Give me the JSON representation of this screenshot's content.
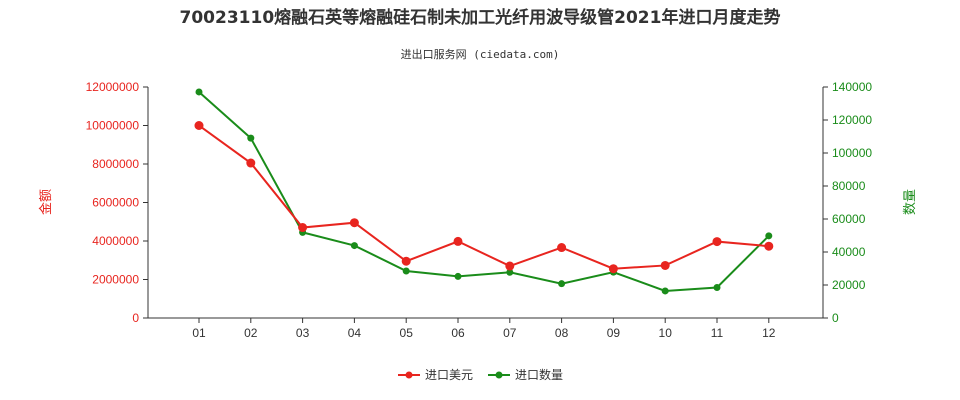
{
  "chart_data": {
    "type": "line",
    "title": "70023110熔融石英等熔融硅石制未加工光纤用波导级管2021年进口月度走势",
    "subtitle": "进出口服务网 (ciedata.com)",
    "categories": [
      "01",
      "02",
      "03",
      "04",
      "05",
      "06",
      "07",
      "08",
      "09",
      "10",
      "11",
      "12"
    ],
    "series": [
      {
        "name": "进口美元",
        "axis": "left",
        "color": "#e8251f",
        "values": [
          10000000,
          8050000,
          4700000,
          4950000,
          2950000,
          3980000,
          2700000,
          3660000,
          2560000,
          2730000,
          3970000,
          3730000
        ]
      },
      {
        "name": "进口数量",
        "axis": "right",
        "color": "#1a8c1a",
        "values": [
          137000,
          109000,
          51900,
          43900,
          28500,
          25200,
          27700,
          20800,
          27800,
          16400,
          18500,
          49800
        ]
      }
    ],
    "y_left": {
      "label": "金额",
      "min": 0,
      "max": 12000000,
      "ticks": [
        "0",
        "2000000",
        "4000000",
        "6000000",
        "8000000",
        "10000000",
        "12000000"
      ]
    },
    "y_right": {
      "label": "数量",
      "min": 0,
      "max": 140000,
      "ticks": [
        "0",
        "20000",
        "40000",
        "60000",
        "80000",
        "100000",
        "120000",
        "140000"
      ]
    },
    "grid": false,
    "legend": "bottom-center"
  }
}
